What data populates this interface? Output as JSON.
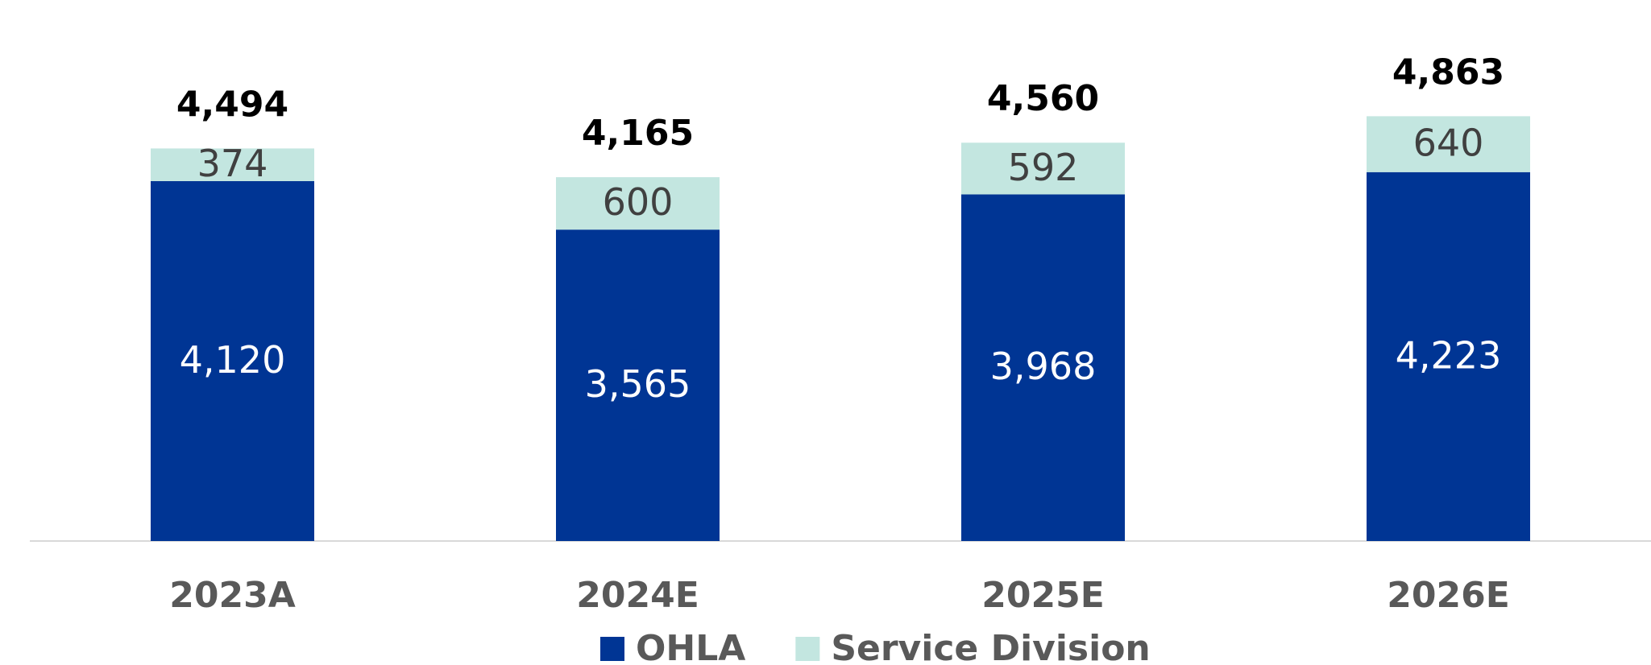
{
  "chart_data": {
    "type": "stacked_bar",
    "categories": [
      "2023A",
      "2024E",
      "2025E",
      "2026E"
    ],
    "series": [
      {
        "name": "OHLA",
        "color": "#003594",
        "values": [
          4120,
          3565,
          3968,
          4223
        ],
        "value_labels": [
          "4,120",
          "3,565",
          "3,968",
          "4,223"
        ]
      },
      {
        "name": "Service Division",
        "color": "#c3e6e0",
        "values": [
          374,
          600,
          592,
          640
        ]
      }
    ],
    "totals": [
      4494,
      4165,
      4560,
      4863
    ],
    "total_labels": [
      "4,494",
      "4,165",
      "4,560",
      "4,863"
    ],
    "ylim": [
      0,
      6000
    ]
  }
}
